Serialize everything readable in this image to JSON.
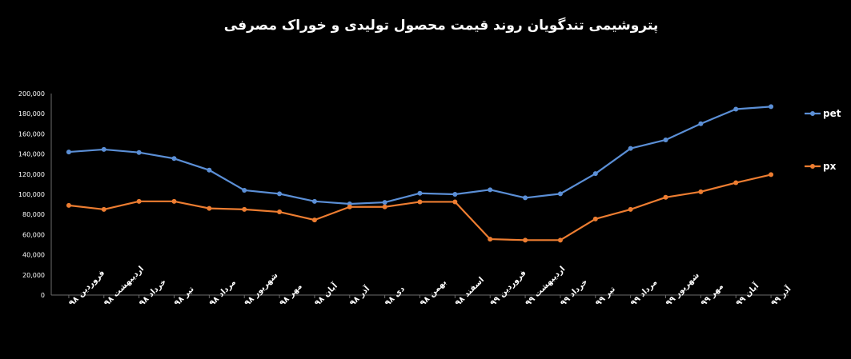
{
  "chart_data": {
    "type": "line",
    "title": "پتروشیمی تندگویان روند قیمت محصول تولیدی و خوراک مصرفی",
    "categories": [
      "فروردین ۹۸",
      "اردیبهشت ۹۸",
      "خرداد ۹۸",
      "تیر ۹۸",
      "مرداد ۹۸",
      "شهریور ۹۸",
      "مهر ۹۸",
      "آبان ۹۸",
      "آذر ۹۸",
      "دی ۹۸",
      "بهمن ۹۸",
      "اسفند ۹۸",
      "فروردین ۹۹",
      "اردیبهشت ۹۹",
      "خرداد ۹۹",
      "تیر ۹۹",
      "مرداد ۹۹",
      "شهریور ۹۹",
      "مهر ۹۹",
      "آبان ۹۹",
      "آذر ۹۹"
    ],
    "series": [
      {
        "name": "pet",
        "color": "#5b8fd6",
        "values": [
          142000,
          144500,
          141500,
          135500,
          124000,
          104000,
          100500,
          93000,
          90500,
          92000,
          101000,
          100000,
          104500,
          96500,
          100500,
          120500,
          145500,
          154000,
          170000,
          184500,
          187000
        ]
      },
      {
        "name": "px",
        "color": "#ed7d31",
        "values": [
          89000,
          85000,
          93000,
          93000,
          86000,
          85000,
          82500,
          74500,
          87500,
          87500,
          92500,
          92500,
          55500,
          54500,
          54500,
          75500,
          85000,
          97000,
          102500,
          111500,
          119500
        ]
      }
    ],
    "ylim": [
      0,
      200000
    ],
    "yticks": [
      "0",
      "20,000",
      "40,000",
      "60,000",
      "80,000",
      "100,000",
      "120,000",
      "140,000",
      "160,000",
      "180,000",
      "200,000"
    ],
    "grid": false,
    "legend": "right"
  }
}
